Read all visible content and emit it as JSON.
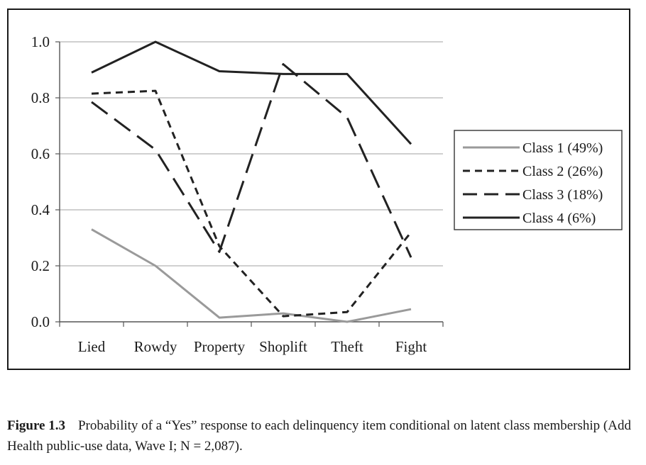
{
  "chart_data": {
    "type": "line",
    "categories": [
      "Lied",
      "Rowdy",
      "Property",
      "Shoplift",
      "Theft",
      "Fight"
    ],
    "ylim": [
      0,
      1.0
    ],
    "yticks": [
      "0.0",
      "0.2",
      "0.4",
      "0.6",
      "0.8",
      "1.0"
    ],
    "grid": true,
    "legend_position": "right",
    "series": [
      {
        "name": "Class 1 (49%)",
        "color": "#9a9a9a",
        "dash": "solid-light",
        "values": [
          0.33,
          0.2,
          0.015,
          0.03,
          0.0,
          0.045
        ]
      },
      {
        "name": "Class 2 (26%)",
        "color": "#222222",
        "dash": "short-dash",
        "values": [
          0.815,
          0.825,
          0.27,
          0.02,
          0.035,
          0.32
        ]
      },
      {
        "name": "Class 3 (18%)",
        "color": "#222222",
        "dash": "long-dash",
        "values": [
          0.785,
          0.615,
          0.25,
          0.92,
          0.73,
          0.23
        ]
      },
      {
        "name": "Class 4 (6%)",
        "color": "#222222",
        "dash": "solid",
        "values": [
          0.89,
          1.0,
          0.895,
          0.885,
          0.885,
          0.635
        ]
      }
    ]
  },
  "caption": {
    "label": "Figure 1.3",
    "text": "Probability of a “Yes” response to each delinquency item conditional on latent class membership (Add Health public-use data, Wave I; N = 2,087)."
  }
}
